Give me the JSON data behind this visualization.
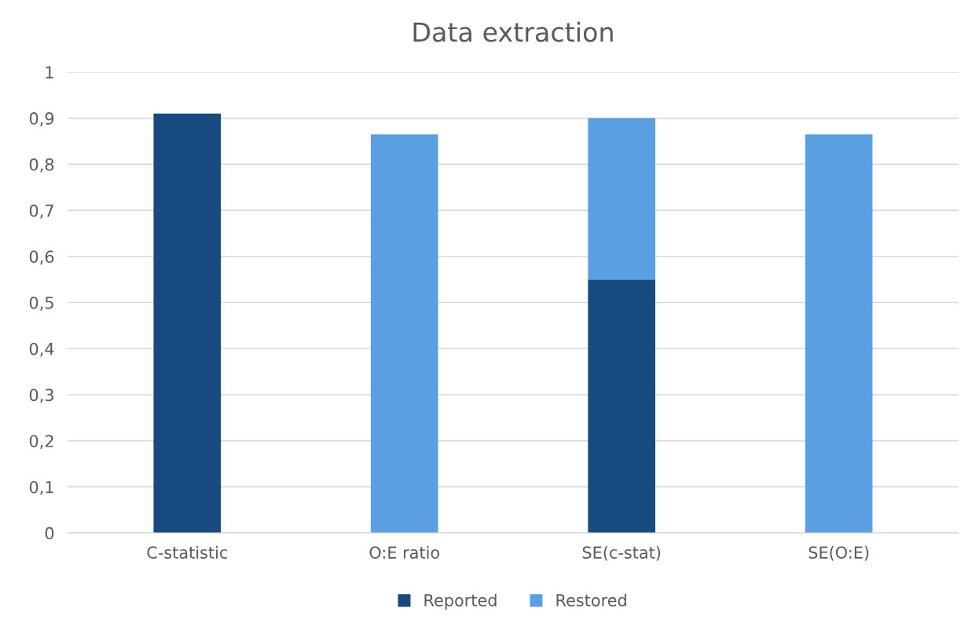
{
  "chart_data": {
    "type": "bar",
    "title": "Data extraction",
    "categories": [
      "C-statistic",
      "O:E ratio",
      "SE(c-stat)",
      "SE(O:E)"
    ],
    "series": [
      {
        "name": "Reported",
        "color": "#174a7e",
        "values": [
          0.91,
          null,
          0.55,
          null
        ]
      },
      {
        "name": "Restored",
        "color": "#5b9fe3",
        "values": [
          null,
          0.865,
          0.35,
          0.865
        ]
      }
    ],
    "stacked": true,
    "ylim": [
      0,
      1
    ],
    "yticks": [
      0,
      {
        "value": 0.1,
        "label": "0,1"
      },
      {
        "value": 0.2,
        "label": "0,2"
      },
      {
        "value": 0.3,
        "label": "0,3"
      },
      {
        "value": 0.4,
        "label": "0,4"
      },
      {
        "value": 0.5,
        "label": "0,5"
      },
      {
        "value": 0.6,
        "label": "0,6"
      },
      {
        "value": 0.7,
        "label": "0,7"
      },
      {
        "value": 0.8,
        "label": "0,8"
      },
      {
        "value": 0.9,
        "label": "0,9"
      },
      1
    ],
    "grid": "y",
    "legend": "bottom"
  }
}
